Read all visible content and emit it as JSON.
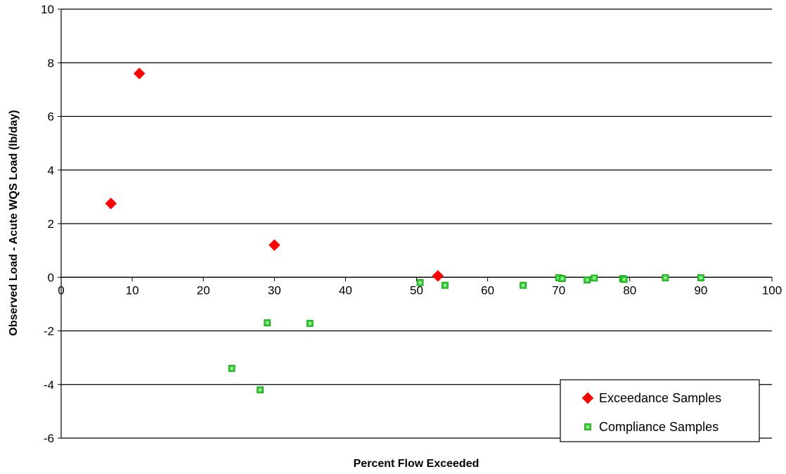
{
  "chart_data": {
    "type": "scatter",
    "title": "",
    "xlabel": "Percent Flow Exceeded",
    "ylabel": "Observed Load - Acute WQS Load (lb/day)",
    "xlim": [
      0,
      100
    ],
    "ylim": [
      -6,
      10
    ],
    "x_ticks": [
      "0",
      "10",
      "20",
      "30",
      "40",
      "50",
      "60",
      "70",
      "80",
      "90",
      "100"
    ],
    "y_ticks": [
      "10",
      "8",
      "6",
      "4",
      "2",
      "0",
      "-2",
      "-4",
      "-6"
    ],
    "grid": "horizontal",
    "legend_position": "bottom-right",
    "series": [
      {
        "name": "Exceedance Samples",
        "marker": "diamond",
        "color": "#ff0000",
        "points": [
          {
            "x": 7,
            "y": 2.75
          },
          {
            "x": 11,
            "y": 7.6
          },
          {
            "x": 30,
            "y": 1.2
          },
          {
            "x": 53,
            "y": 0.05
          }
        ]
      },
      {
        "name": "Compliance Samples",
        "marker": "square",
        "color": "#33cc33",
        "points": [
          {
            "x": 24,
            "y": -3.4
          },
          {
            "x": 28,
            "y": -4.2
          },
          {
            "x": 29,
            "y": -1.7
          },
          {
            "x": 35,
            "y": -1.72
          },
          {
            "x": 50.5,
            "y": -0.2
          },
          {
            "x": 54,
            "y": -0.3
          },
          {
            "x": 65,
            "y": -0.3
          },
          {
            "x": 70,
            "y": -0.02
          },
          {
            "x": 70.5,
            "y": -0.05
          },
          {
            "x": 74,
            "y": -0.1
          },
          {
            "x": 75,
            "y": -0.03
          },
          {
            "x": 79,
            "y": -0.05
          },
          {
            "x": 79.2,
            "y": -0.08
          },
          {
            "x": 85,
            "y": -0.02
          },
          {
            "x": 90,
            "y": -0.02
          }
        ]
      }
    ]
  }
}
